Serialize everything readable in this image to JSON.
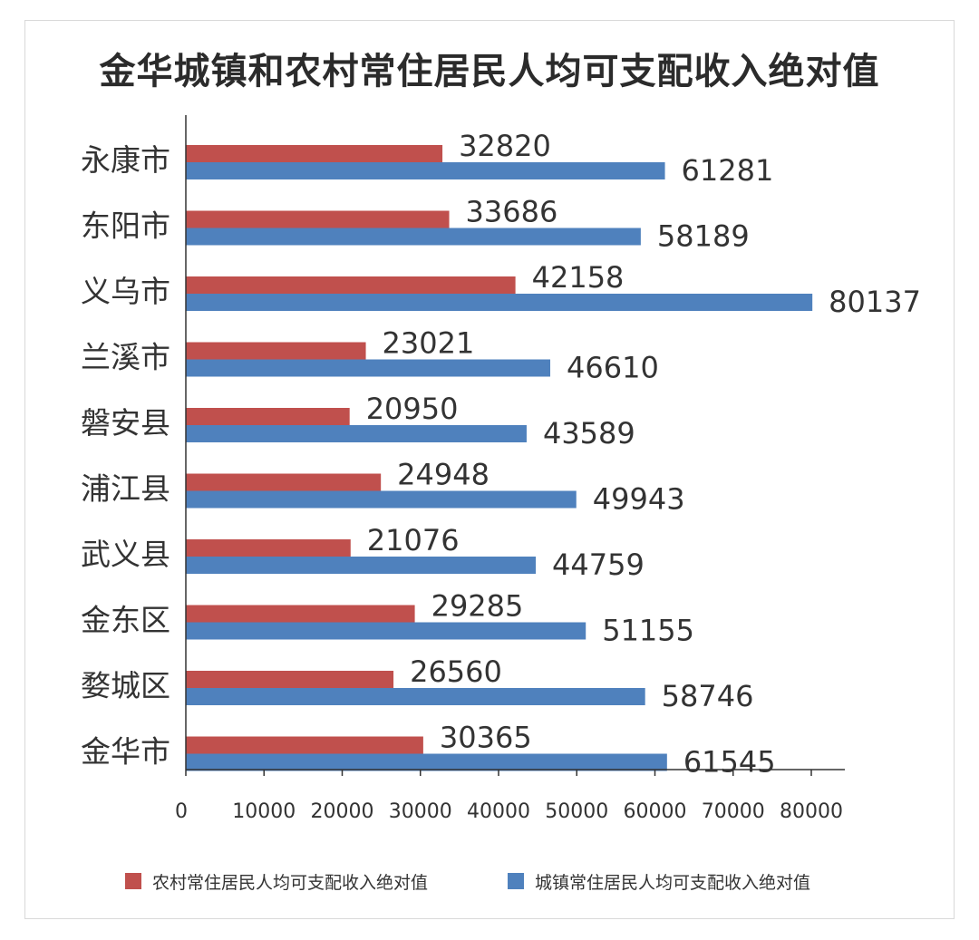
{
  "chart_data": {
    "type": "bar",
    "orientation": "horizontal",
    "title": "金华城镇和农村常住居民人均可支配收入绝对值",
    "categories": [
      "永康市",
      "东阳市",
      "义乌市",
      "兰溪市",
      "磐安县",
      "浦江县",
      "武义县",
      "金东区",
      "婺城区",
      "金华市"
    ],
    "series": [
      {
        "name": "农村常住居民人均可支配收入绝对值",
        "color": "#c0504d",
        "values": [
          32820,
          33686,
          42158,
          23021,
          20950,
          24948,
          21076,
          29285,
          26560,
          30365
        ]
      },
      {
        "name": "城镇常住居民人均可支配收入绝对值",
        "color": "#4f81bd",
        "values": [
          61281,
          58189,
          80137,
          46610,
          43589,
          49943,
          44759,
          51155,
          58746,
          61545
        ]
      }
    ],
    "xlim": [
      0,
      80000
    ],
    "xticks": [
      0,
      10000,
      20000,
      30000,
      40000,
      50000,
      60000,
      70000,
      80000
    ],
    "grid": false,
    "legend_position": "bottom"
  }
}
